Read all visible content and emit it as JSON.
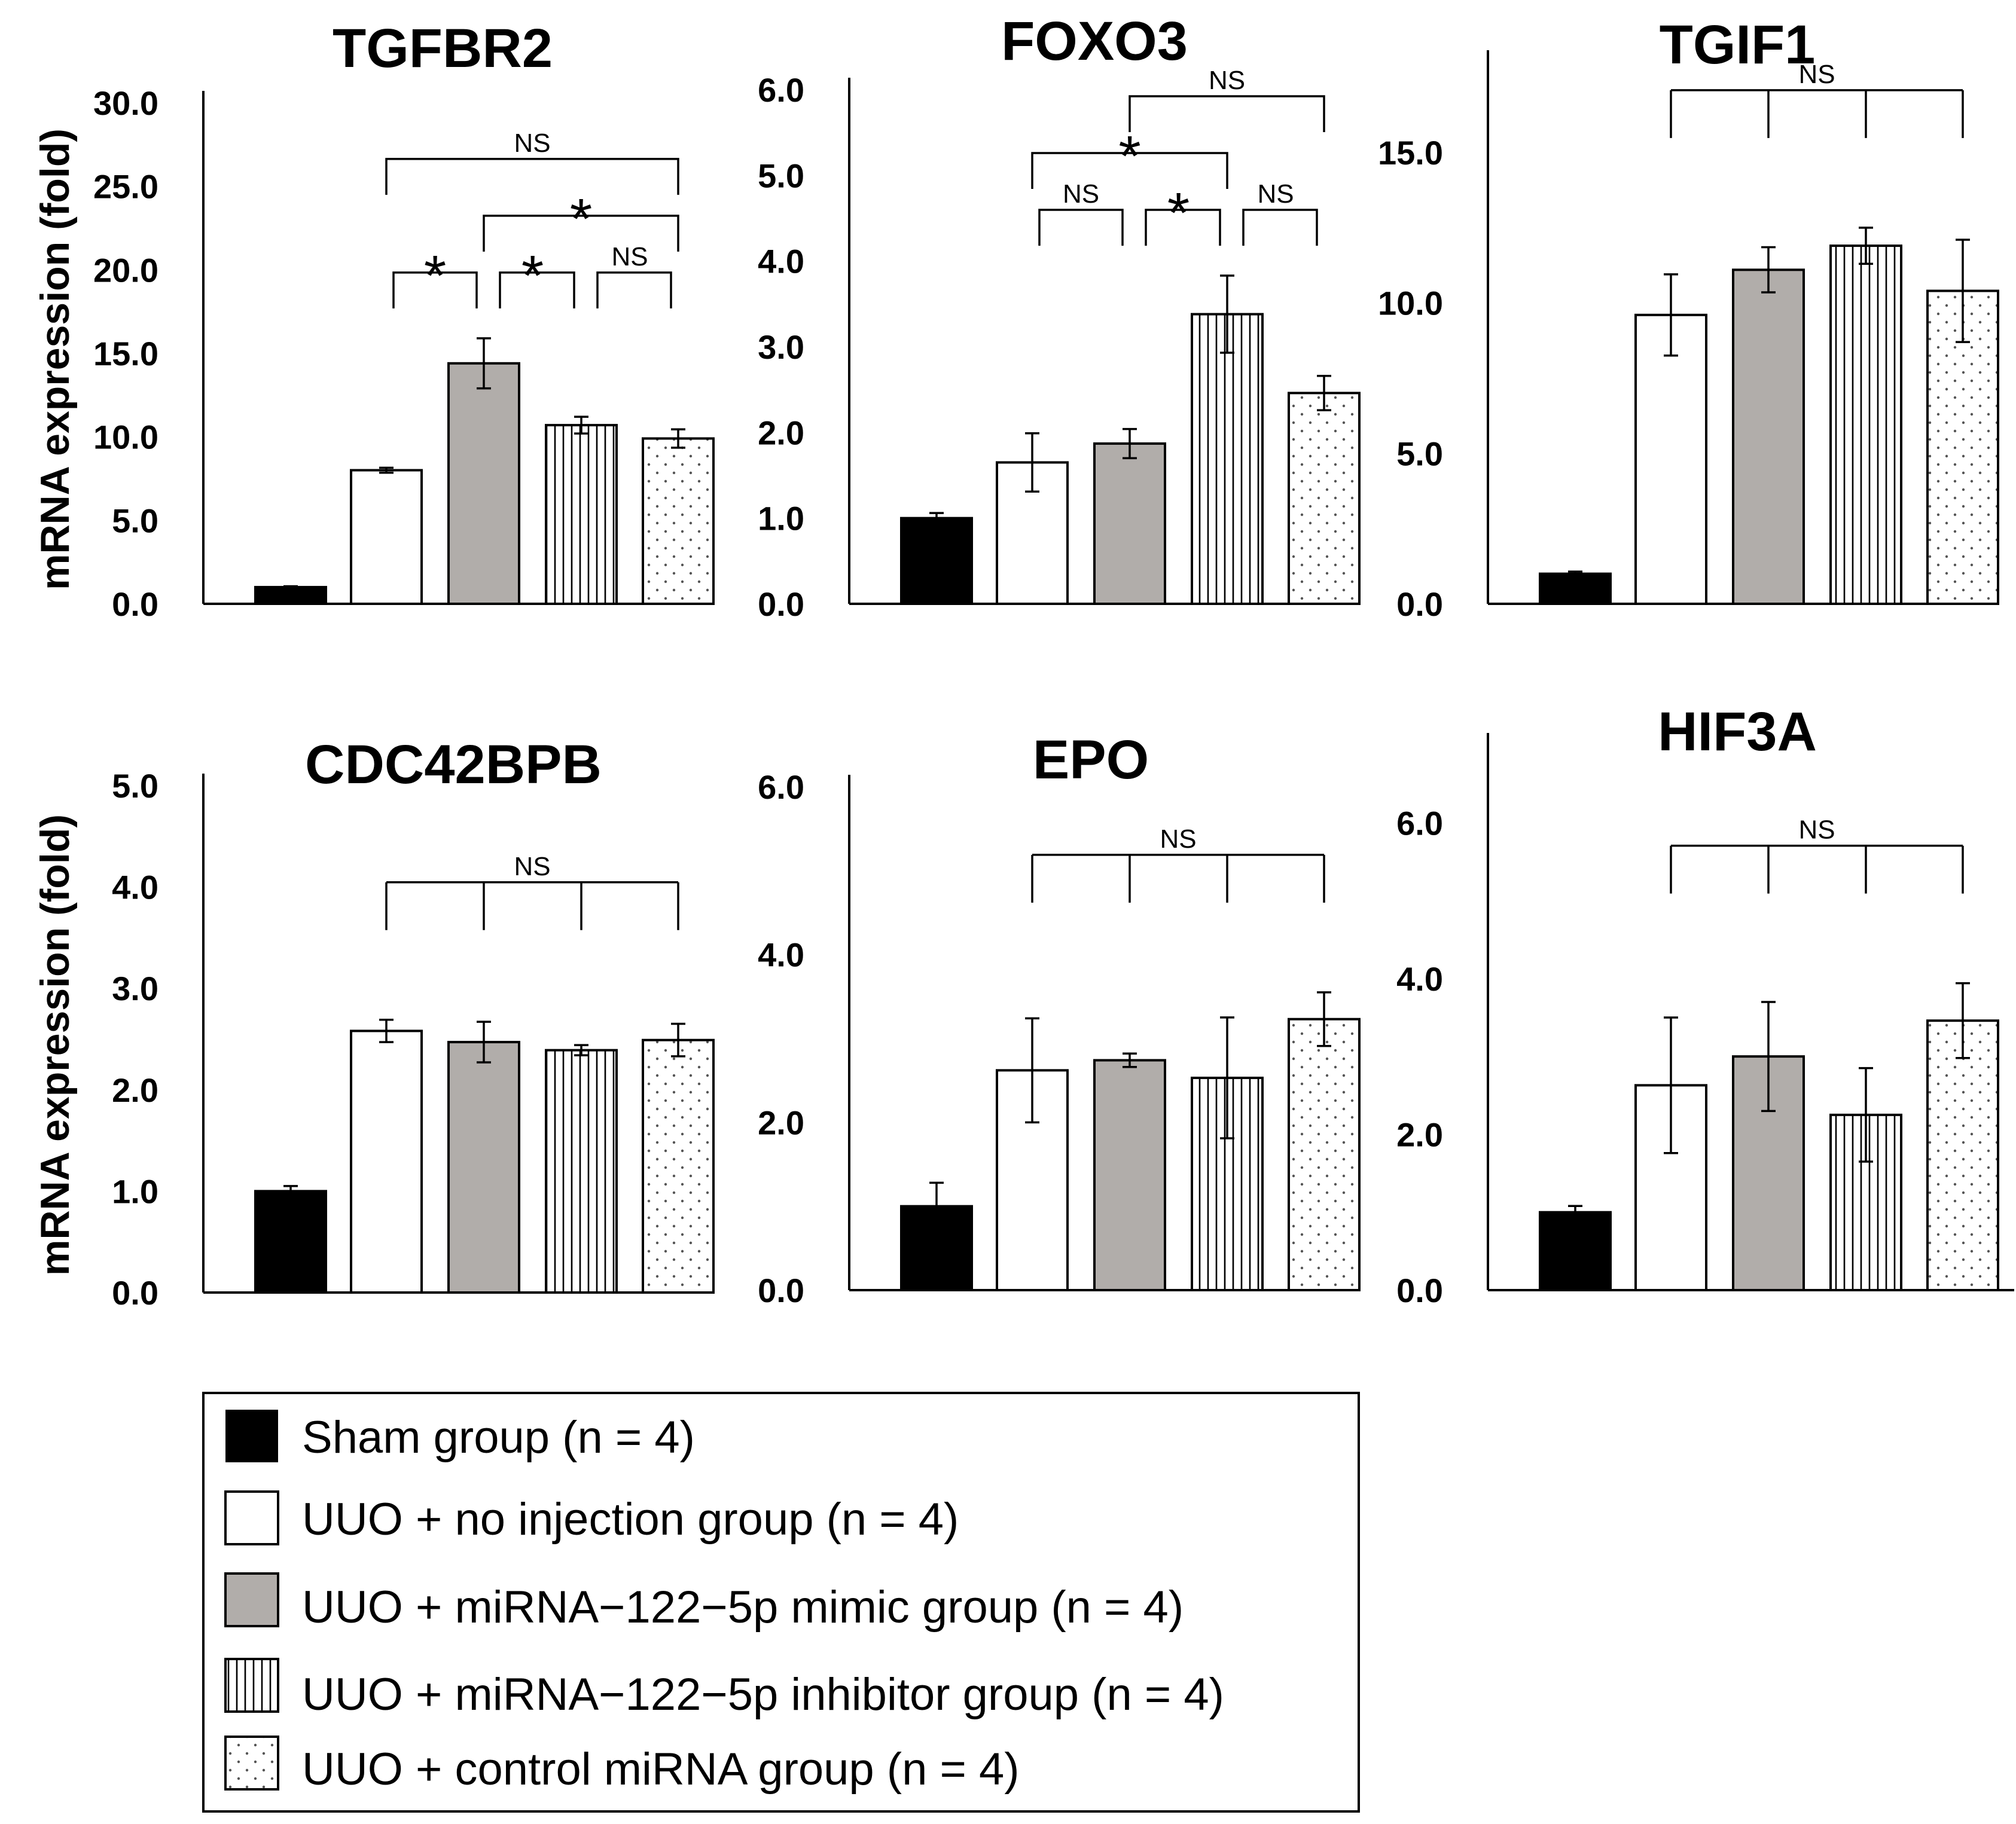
{
  "chart_data": [
    {
      "type": "bar",
      "title": "TGFBR2",
      "ylabel": "mRNA expression (fold)",
      "ylim": [
        0,
        30
      ],
      "yticks": [
        "0.0",
        "5.0",
        "10.0",
        "15.0",
        "20.0",
        "25.0",
        "30.0"
      ],
      "categories": [
        "Sham group (n = 4)",
        "UUO + no injection group (n = 4)",
        "UUO + miRNA−122−5p mimic group (n = 4)",
        "UUO + miRNA−122−5p inhibitor group (n = 4)",
        "UUO + control miRNA group (n = 4)"
      ],
      "values": [
        1.0,
        8.0,
        14.4,
        10.7,
        9.9
      ],
      "errors": [
        0.05,
        0.15,
        1.5,
        0.5,
        0.55
      ],
      "brackets": [
        {
          "groups": [
            1,
            4
          ],
          "label": "NS",
          "level": 3
        },
        {
          "groups": [
            2,
            4
          ],
          "label": "*",
          "level": 2
        },
        {
          "groups": [
            1,
            2
          ],
          "label": "*",
          "level": 1
        },
        {
          "groups": [
            2,
            3
          ],
          "label": "*",
          "level": 1
        },
        {
          "groups": [
            3,
            4
          ],
          "label": "NS",
          "level": 1
        }
      ]
    },
    {
      "type": "bar",
      "title": "FOXO3",
      "ylabel": "",
      "ylim": [
        0,
        6
      ],
      "yticks": [
        "0.0",
        "1.0",
        "2.0",
        "3.0",
        "4.0",
        "5.0",
        "6.0"
      ],
      "categories": [
        "Sham group (n = 4)",
        "UUO + no injection group (n = 4)",
        "UUO + miRNA−122−5p mimic group (n = 4)",
        "UUO + miRNA−122−5p inhibitor group (n = 4)",
        "UUO + control miRNA group (n = 4)"
      ],
      "values": [
        1.0,
        1.65,
        1.87,
        3.38,
        2.46
      ],
      "errors": [
        0.06,
        0.34,
        0.17,
        0.45,
        0.2
      ],
      "brackets": [
        {
          "groups": [
            2,
            4
          ],
          "label": "NS",
          "level": 3
        },
        {
          "groups": [
            1,
            3
          ],
          "label": "*",
          "level": 2
        },
        {
          "groups": [
            1,
            2
          ],
          "label": "NS",
          "level": 1
        },
        {
          "groups": [
            2,
            3
          ],
          "label": "*",
          "level": 1
        },
        {
          "groups": [
            3,
            4
          ],
          "label": "NS",
          "level": 1
        }
      ]
    },
    {
      "type": "bar",
      "title": "TGIF1",
      "ylabel": "",
      "ylim": [
        0,
        18
      ],
      "yticks": [
        "0.0",
        "5.0",
        "10.0",
        "15.0"
      ],
      "categories": [
        "Sham group (n = 4)",
        "UUO + no injection group (n = 4)",
        "UUO + miRNA−122−5p mimic group (n = 4)",
        "UUO + miRNA−122−5p inhibitor group (n = 4)",
        "UUO + control miRNA group (n = 4)"
      ],
      "values": [
        1.0,
        9.6,
        11.1,
        11.9,
        10.4
      ],
      "errors": [
        0.07,
        1.35,
        0.75,
        0.6,
        1.7
      ],
      "brackets": [
        {
          "groups": [
            1,
            4
          ],
          "label": "NS",
          "level": 1,
          "multi": true
        }
      ]
    },
    {
      "type": "bar",
      "title": "CDC42BPB",
      "ylabel": "mRNA expression (fold)",
      "ylim": [
        0,
        5
      ],
      "yticks": [
        "0.0",
        "1.0",
        "2.0",
        "3.0",
        "4.0",
        "5.0"
      ],
      "categories": [
        "Sham group (n = 4)",
        "UUO + no injection group (n = 4)",
        "UUO + miRNA−122−5p mimic group (n = 4)",
        "UUO + miRNA−122−5p inhibitor group (n = 4)",
        "UUO + control miRNA group (n = 4)"
      ],
      "values": [
        1.0,
        2.58,
        2.47,
        2.39,
        2.49
      ],
      "errors": [
        0.05,
        0.11,
        0.2,
        0.05,
        0.16
      ],
      "brackets": [
        {
          "groups": [
            1,
            4
          ],
          "label": "NS",
          "level": 1,
          "multi": true
        }
      ]
    },
    {
      "type": "bar",
      "title": "EPO",
      "ylabel": "",
      "ylim": [
        0,
        6
      ],
      "yticks": [
        "0.0",
        "2.0",
        "4.0",
        "6.0"
      ],
      "categories": [
        "Sham group (n = 4)",
        "UUO + no injection group (n = 4)",
        "UUO + miRNA−122−5p mimic group (n = 4)",
        "UUO + miRNA−122−5p inhibitor group (n = 4)",
        "UUO + control miRNA group (n = 4)"
      ],
      "values": [
        1.0,
        2.62,
        2.74,
        2.53,
        3.23
      ],
      "errors": [
        0.28,
        0.62,
        0.08,
        0.72,
        0.32
      ],
      "brackets": [
        {
          "groups": [
            1,
            4
          ],
          "label": "NS",
          "level": 1,
          "multi": true
        }
      ]
    },
    {
      "type": "bar",
      "title": "HIF3A",
      "ylabel": "",
      "ylim": [
        0,
        7
      ],
      "yticks": [
        "0.0",
        "2.0",
        "4.0",
        "6.0"
      ],
      "categories": [
        "Sham group (n = 4)",
        "UUO + no injection group (n = 4)",
        "UUO + miRNA−122−5p mimic group (n = 4)",
        "UUO + miRNA−122−5p inhibitor group (n = 4)",
        "UUO + control miRNA group (n = 4)"
      ],
      "values": [
        1.0,
        2.63,
        3.0,
        2.25,
        3.46
      ],
      "errors": [
        0.08,
        0.87,
        0.7,
        0.6,
        0.48
      ],
      "brackets": [
        {
          "groups": [
            1,
            4
          ],
          "label": "NS",
          "level": 1,
          "multi": true
        }
      ]
    }
  ],
  "legend": {
    "items": [
      {
        "label": "Sham group (n = 4)",
        "pattern": "solid-black"
      },
      {
        "label": "UUO + no injection group (n = 4)",
        "pattern": "white"
      },
      {
        "label": "UUO + miRNA−122−5p mimic group (n = 4)",
        "pattern": "gray"
      },
      {
        "label": "UUO + miRNA−122−5p inhibitor group (n = 4)",
        "pattern": "vertical-stripes"
      },
      {
        "label": "UUO + control miRNA group (n = 4)",
        "pattern": "dots"
      }
    ]
  },
  "colors": {
    "axis": "#000000",
    "sham": "#000000",
    "no_injection": "#ffffff",
    "mimic": "#b1adaa",
    "inhibitor_stripe": "#000000",
    "control_dot": "#555555"
  }
}
